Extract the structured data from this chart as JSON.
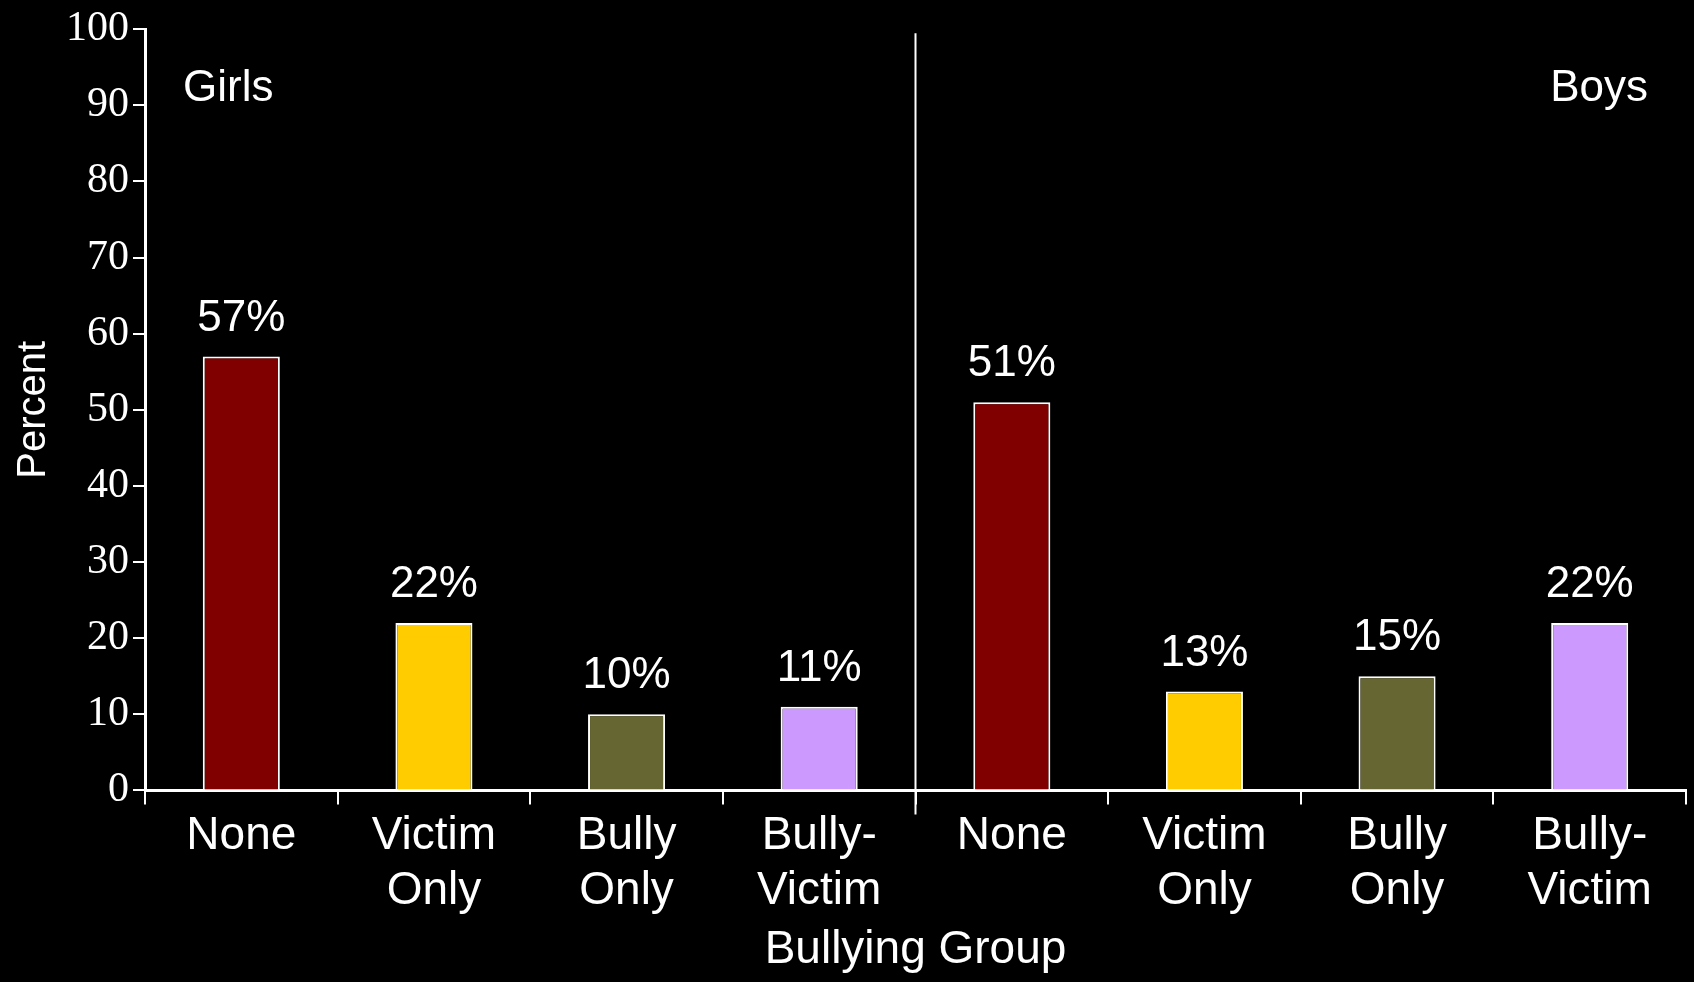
{
  "chart_data": {
    "type": "bar",
    "xlabel": "Bullying Group",
    "ylabel": "Percent",
    "categories": [
      "None",
      "Victim Only",
      "Bully Only",
      "Bully-Victim",
      "None",
      "Victim Only",
      "Bully Only",
      "Bully-Victim"
    ],
    "values": [
      57,
      22,
      10,
      11,
      51,
      13,
      15,
      22
    ],
    "colors": [
      "#800000",
      "#ffcc00",
      "#666633",
      "#cc99ff",
      "#800000",
      "#ffcc00",
      "#666633",
      "#cc99ff"
    ],
    "value_labels": [
      "57%",
      "22%",
      "10%",
      "11%",
      "51%",
      "13%",
      "15%",
      "22%"
    ],
    "ylim": [
      0,
      100
    ],
    "yticks": [
      0,
      10,
      20,
      30,
      40,
      50,
      60,
      70,
      80,
      90,
      100
    ],
    "annotations": [
      "Girls",
      "Boys"
    ],
    "grid": false,
    "legend": false
  }
}
